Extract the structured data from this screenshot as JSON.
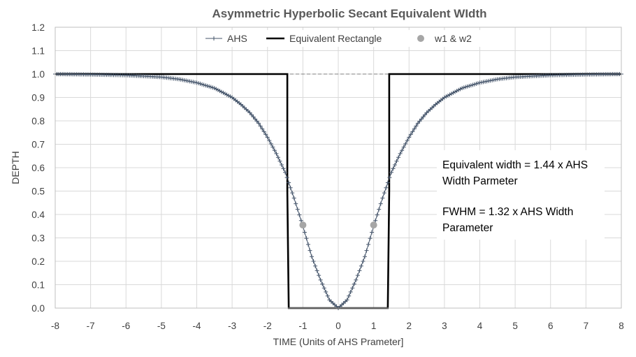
{
  "chart_data": {
    "type": "line",
    "title": "Asymmetric Hyperbolic Secant Equivalent WIdth",
    "xlabel": "TIME (Units of AHS Prameter]",
    "ylabel": "DEPTH",
    "xlim": [
      -8,
      8
    ],
    "ylim": [
      0,
      1.2
    ],
    "xticks": [
      "-8",
      "-7",
      "-6",
      "-5",
      "-4",
      "-3",
      "-2",
      "-1",
      "0",
      "1",
      "2",
      "3",
      "4",
      "5",
      "6",
      "7",
      "8"
    ],
    "yticks": [
      "0.0",
      "0.1",
      "0.2",
      "0.3",
      "0.4",
      "0.5",
      "0.6",
      "0.7",
      "0.8",
      "0.9",
      "1.0",
      "1.1",
      "1.2"
    ],
    "grid": true,
    "legend_position": "top",
    "series": [
      {
        "name": "AHS",
        "style": "line-plus-markers",
        "color": "#44546A",
        "x": [
          -8.0,
          -7.0,
          -6.0,
          -5.0,
          -4.5,
          -4.0,
          -3.5,
          -3.0,
          -2.75,
          -2.5,
          -2.25,
          -2.0,
          -1.75,
          -1.5,
          -1.25,
          -1.0,
          -0.75,
          -0.5,
          -0.25,
          0.0,
          0.25,
          0.5,
          0.75,
          1.0,
          1.25,
          1.5,
          1.75,
          2.0,
          2.25,
          2.5,
          2.75,
          3.0,
          3.5,
          4.0,
          4.5,
          5.0,
          6.0,
          7.0,
          8.0
        ],
        "y": [
          1.0,
          0.998,
          0.995,
          0.987,
          0.978,
          0.963,
          0.94,
          0.9,
          0.87,
          0.835,
          0.79,
          0.73,
          0.66,
          0.58,
          0.47,
          0.35,
          0.22,
          0.12,
          0.035,
          0.0,
          0.035,
          0.12,
          0.22,
          0.35,
          0.47,
          0.58,
          0.66,
          0.73,
          0.79,
          0.835,
          0.87,
          0.9,
          0.94,
          0.963,
          0.978,
          0.987,
          0.995,
          0.998,
          1.0
        ]
      },
      {
        "name": "Equivalent Rectangle",
        "style": "line",
        "color": "#000000",
        "x": [
          -8,
          -1.44,
          -1.44,
          -1.4,
          1.4,
          1.44,
          1.44,
          8
        ],
        "y": [
          1.0,
          1.0,
          0.5,
          0.0,
          0.0,
          0.5,
          1.0,
          1.0
        ]
      },
      {
        "name": "w1 & w2",
        "style": "markers",
        "color": "#A6A6A6",
        "x": [
          -1.0,
          1.0
        ],
        "y": [
          0.355,
          0.355
        ]
      }
    ],
    "reference_line": {
      "y": 1.0,
      "style": "dashed",
      "color": "#7F7F7F"
    },
    "annotations": [
      "Equivalent width = 1.44 x AHS",
      "Width Parmeter",
      "FWHM = 1.32 x AHS Width",
      "Parameter"
    ]
  }
}
